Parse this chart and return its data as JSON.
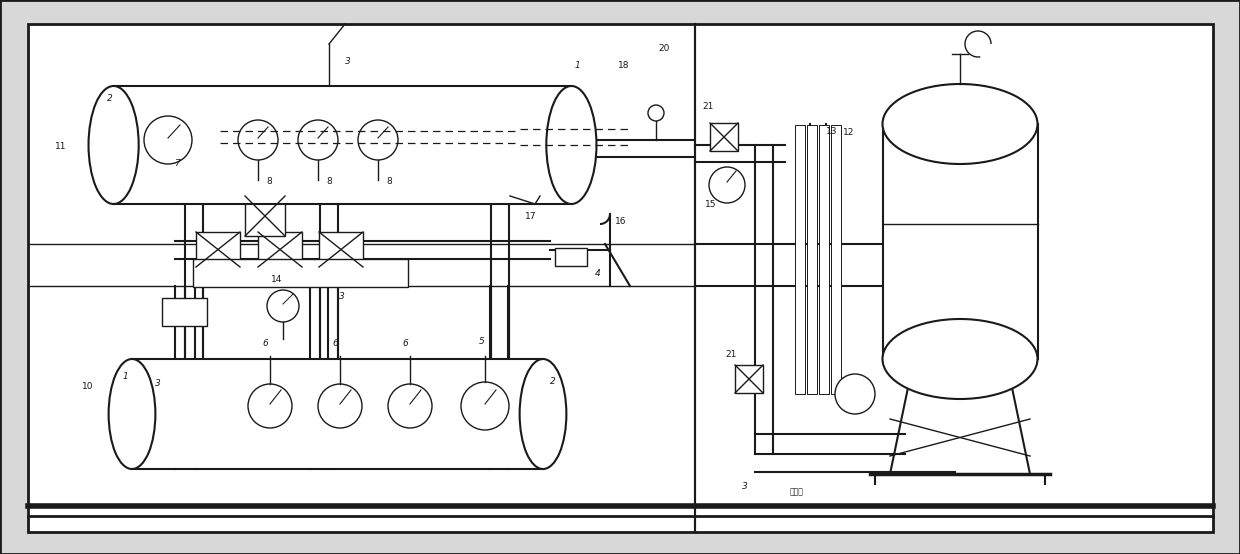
{
  "bg_color": "#e8e8e8",
  "inner_bg": "#ffffff",
  "line_color": "#1a1a1a",
  "fig_width": 12.4,
  "fig_height": 5.54,
  "label_fontsize": 6.5
}
